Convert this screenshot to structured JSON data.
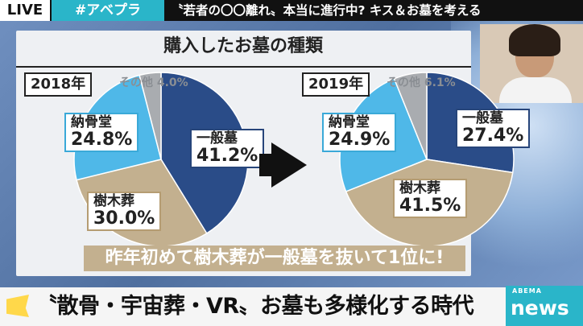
{
  "topbar": {
    "live": "LIVE",
    "tag": "#アベプラ",
    "topic": "〝若者の〇〇離れ〟本当に進行中? キス＆お墓を考える"
  },
  "board": {
    "title": "購入したお墓の種類",
    "note": "昨年初めて樹木葬が一般墓を抜いて1位に!"
  },
  "colors": {
    "general": "#2a4c88",
    "tree": "#c3b08f",
    "ossuary": "#4fb8e8",
    "other": "#a9acb0"
  },
  "chart_data": [
    {
      "type": "pie",
      "title": "2018年",
      "slices": [
        {
          "label": "一般墓",
          "value": 41.2,
          "value_text": "41.2%",
          "color": "#2a4c88"
        },
        {
          "label": "樹木葬",
          "value": 30.0,
          "value_text": "30.0%",
          "color": "#c3b08f"
        },
        {
          "label": "納骨堂",
          "value": 24.8,
          "value_text": "24.8%",
          "color": "#4fb8e8"
        },
        {
          "label": "その他",
          "value": 4.0,
          "value_text": "4.0%",
          "color": "#a9acb0"
        }
      ]
    },
    {
      "type": "pie",
      "title": "2019年",
      "slices": [
        {
          "label": "一般墓",
          "value": 27.4,
          "value_text": "27.4%",
          "color": "#2a4c88"
        },
        {
          "label": "樹木葬",
          "value": 41.5,
          "value_text": "41.5%",
          "color": "#c3b08f"
        },
        {
          "label": "納骨堂",
          "value": 24.9,
          "value_text": "24.9%",
          "color": "#4fb8e8"
        },
        {
          "label": "その他",
          "value": 6.1,
          "value_text": "6.1%",
          "color": "#a9acb0"
        }
      ]
    }
  ],
  "bottom": {
    "headline": "〝散骨・宇宙葬・VR〟お墓も多様化する時代",
    "logo_top": "ABEMA",
    "logo_main": "news"
  }
}
